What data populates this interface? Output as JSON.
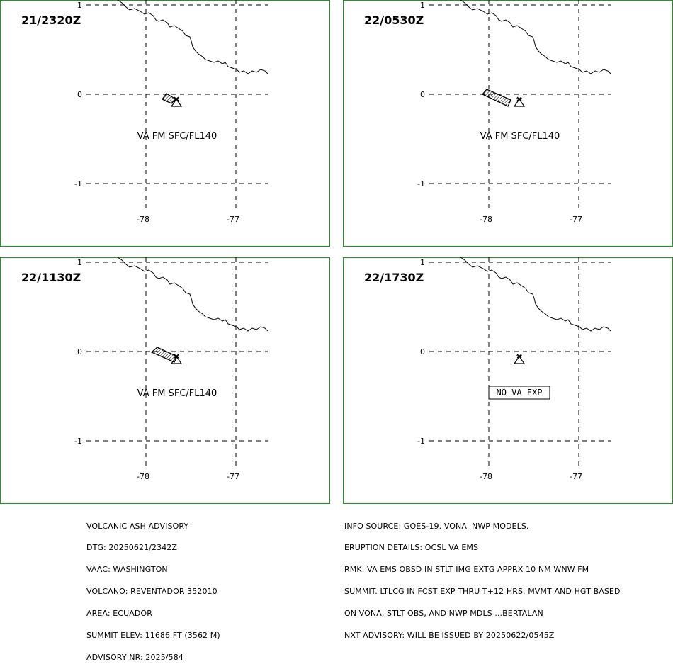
{
  "colors": {
    "frame": "#2e8b2e",
    "lines": "#000000",
    "background": "#ffffff"
  },
  "panels": [
    {
      "time": "21/2320Z",
      "ash_label": "VA FM SFC/FL140",
      "ash_shape": "small"
    },
    {
      "time": "22/0530Z",
      "ash_label": "VA FM SFC/FL140",
      "ash_shape": "medium"
    },
    {
      "time": "22/1130Z",
      "ash_label": "VA FM SFC/FL140",
      "ash_shape": "large"
    },
    {
      "time": "22/1730Z",
      "ash_label": "NO VA EXP",
      "ash_shape": "none"
    }
  ],
  "axes": {
    "lat_labels": [
      "1",
      "0",
      "-1"
    ],
    "lon_labels": [
      "-78",
      "-77"
    ]
  },
  "volcano_symbol": "volcano-triangle-icon",
  "advisory_left": [
    "VOLCANIC ASH ADVISORY",
    "DTG: 20250621/2342Z",
    "VAAC: WASHINGTON",
    "VOLCANO: REVENTADOR 352010",
    "AREA: ECUADOR",
    "SUMMIT ELEV: 11686 FT (3562 M)",
    "ADVISORY NR: 2025/584"
  ],
  "advisory_right": [
    "INFO SOURCE: GOES-19. VONA. NWP MODELS.",
    "ERUPTION DETAILS: OCSL VA EMS",
    "RMK: VA EMS OBSD IN STLT IMG EXTG APPRX 10 NM WNW FM",
    "SUMMIT. LTLCG IN FCST EXP THRU T+12 HRS. MVMT AND HGT BASED",
    "ON VONA, STLT OBS, AND NWP MDLS ...BERTALAN",
    "NXT ADVISORY: WILL BE ISSUED BY 20250622/0545Z"
  ]
}
